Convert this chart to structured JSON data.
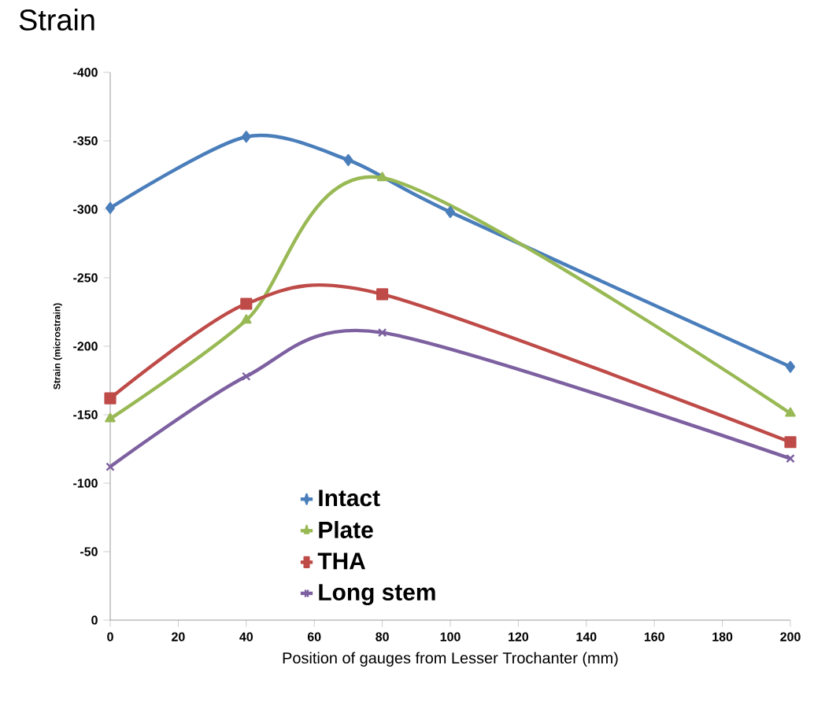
{
  "chart_data": {
    "type": "line",
    "title": "Strain",
    "xlabel": "Position of gauges from Lesser Trochanter (mm)",
    "ylabel": "Strain (microstrain)",
    "xlim": [
      0,
      200
    ],
    "xticks": [
      0,
      20,
      40,
      60,
      80,
      100,
      120,
      140,
      160,
      180,
      200
    ],
    "ylim": [
      0,
      -400
    ],
    "yticks": [
      -400,
      -350,
      -300,
      -250,
      -200,
      -150,
      -100,
      -50,
      0
    ],
    "grid": false,
    "legend": "bottom left",
    "line_style": "solid",
    "series": [
      {
        "name": "Intact",
        "color": "#4a7ebb",
        "marker": "diamond",
        "x": [
          0,
          40,
          70,
          100,
          200
        ],
        "values": [
          -301,
          -353,
          -336,
          -298,
          -185
        ]
      },
      {
        "name": "Plate",
        "color": "#98b954",
        "marker": "triangle",
        "x": [
          0,
          40,
          80,
          200
        ],
        "values": [
          -147,
          -219,
          -323,
          -151
        ]
      },
      {
        "name": "THA",
        "color": "#be4b48",
        "marker": "square",
        "x": [
          0,
          40,
          80,
          200
        ],
        "values": [
          -162,
          -231,
          -238,
          -130
        ]
      },
      {
        "name": "Long stem",
        "color": "#7d60a0",
        "marker": "cross",
        "x": [
          0,
          40,
          80,
          200
        ],
        "values": [
          -112,
          -178,
          -210,
          -118
        ]
      }
    ]
  }
}
